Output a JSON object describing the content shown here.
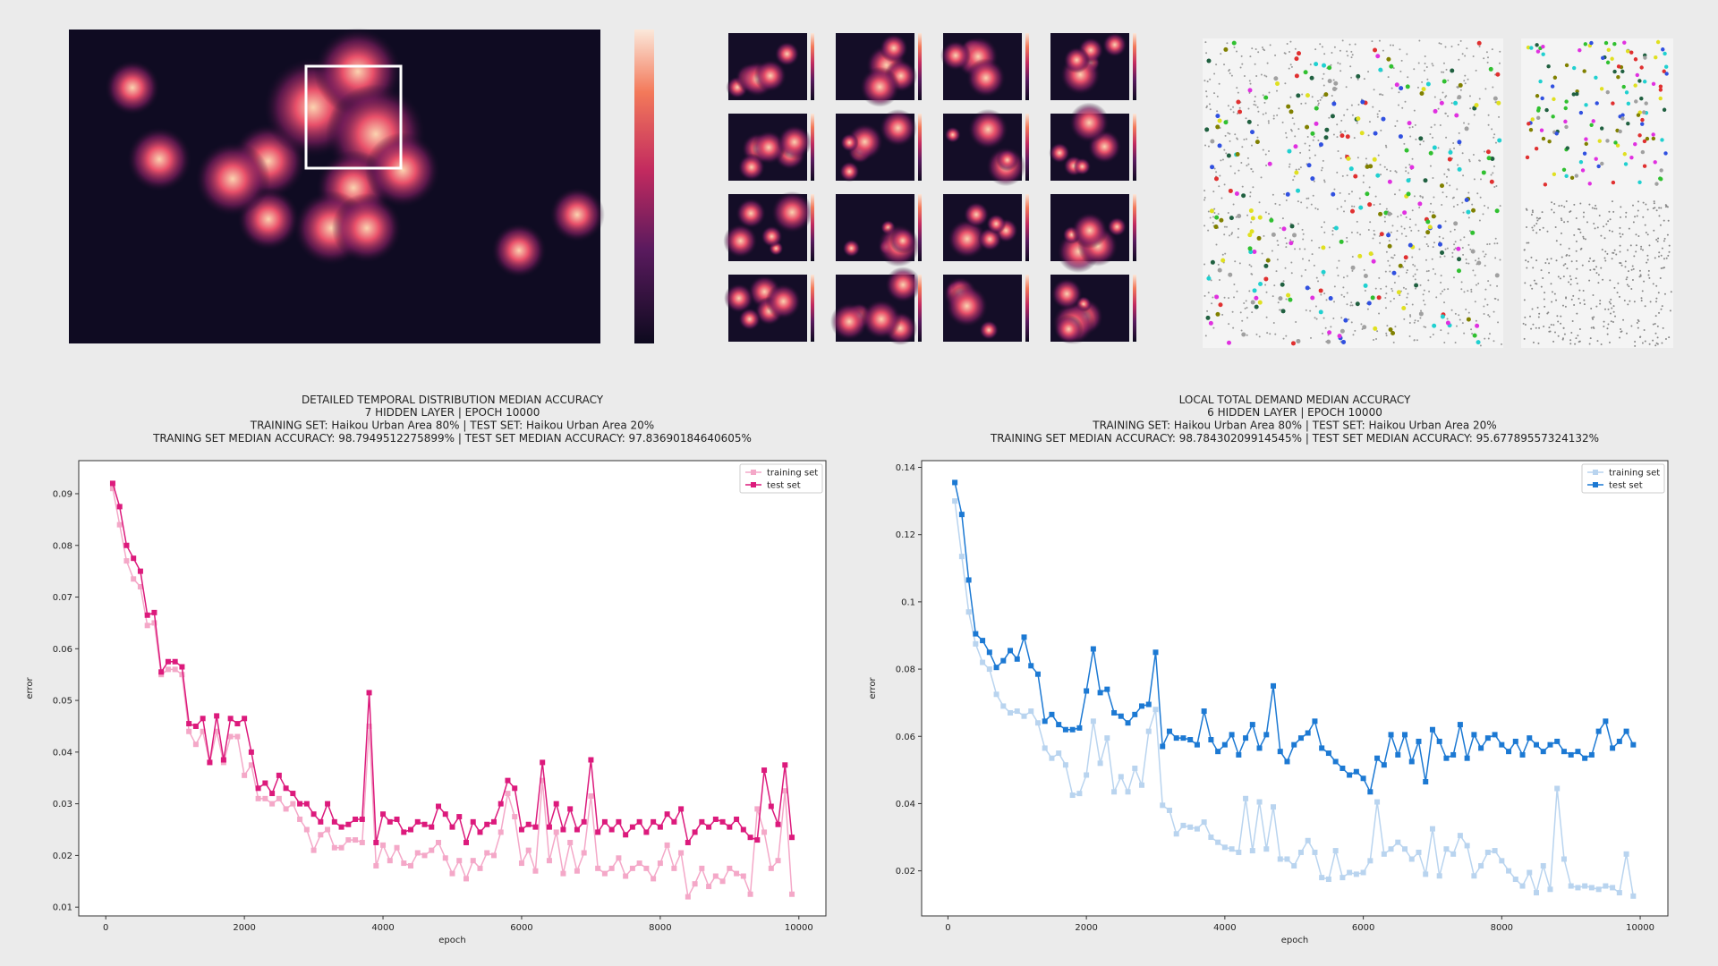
{
  "chart_data": [
    {
      "type": "line",
      "title": "DETAILED TEMPORAL DISTRIBUTION MEDIAN ACCURACY",
      "subtitle": [
        "7 HIDDEN LAYER | EPOCH 10000",
        "TRAINING SET: Haikou Urban Area 80% | TEST SET: Haikou Urban Area 20%",
        "TRANING SET MEDIAN ACCURACY: 98.7949512275899% | TEST SET MEDIAN ACCURACY: 97.83690184640605%"
      ],
      "xlabel": "epoch",
      "ylabel": "error",
      "legend": "upper right",
      "xlim": [
        -390,
        10390
      ],
      "ylim": [
        0.0083,
        0.0964
      ],
      "xticks": [
        0,
        2000,
        4000,
        6000,
        8000,
        10000
      ],
      "yticks": [
        0.01,
        0.02,
        0.03,
        0.04,
        0.05,
        0.06,
        0.07,
        0.08,
        0.09
      ],
      "x": [
        100,
        200,
        300,
        400,
        500,
        600,
        700,
        800,
        900,
        1000,
        1100,
        1200,
        1300,
        1400,
        1500,
        1600,
        1700,
        1800,
        1900,
        2000,
        2100,
        2200,
        2300,
        2400,
        2500,
        2600,
        2700,
        2800,
        2900,
        3000,
        3100,
        3200,
        3300,
        3400,
        3500,
        3600,
        3700,
        3800,
        3900,
        4000,
        4100,
        4200,
        4300,
        4400,
        4500,
        4600,
        4700,
        4800,
        4900,
        5000,
        5100,
        5200,
        5300,
        5400,
        5500,
        5600,
        5700,
        5800,
        5900,
        6000,
        6100,
        6200,
        6300,
        6400,
        6500,
        6600,
        6700,
        6800,
        6900,
        7000,
        7100,
        7200,
        7300,
        7400,
        7500,
        7600,
        7700,
        7800,
        7900,
        8000,
        8100,
        8200,
        8300,
        8400,
        8500,
        8600,
        8700,
        8800,
        8900,
        9000,
        9100,
        9200,
        9300,
        9400,
        9500,
        9600,
        9700,
        9800,
        9900
      ],
      "series": [
        {
          "name": "training set",
          "color": "#f4a8c8",
          "values": [
            0.091,
            0.084,
            0.077,
            0.0735,
            0.072,
            0.0645,
            0.065,
            0.055,
            0.056,
            0.056,
            0.055,
            0.044,
            0.0415,
            0.044,
            0.038,
            0.044,
            0.038,
            0.043,
            0.043,
            0.0355,
            0.0375,
            0.031,
            0.031,
            0.03,
            0.031,
            0.029,
            0.03,
            0.027,
            0.025,
            0.021,
            0.024,
            0.025,
            0.0215,
            0.0215,
            0.023,
            0.023,
            0.0225,
            0.045,
            0.018,
            0.022,
            0.019,
            0.0215,
            0.0185,
            0.018,
            0.0205,
            0.02,
            0.021,
            0.0225,
            0.0195,
            0.0165,
            0.019,
            0.0155,
            0.019,
            0.0175,
            0.0205,
            0.02,
            0.0245,
            0.032,
            0.0275,
            0.0185,
            0.021,
            0.017,
            0.0345,
            0.019,
            0.0245,
            0.0165,
            0.0225,
            0.017,
            0.0205,
            0.0315,
            0.0175,
            0.0165,
            0.0175,
            0.0195,
            0.016,
            0.0175,
            0.0185,
            0.0175,
            0.0155,
            0.0185,
            0.022,
            0.0175,
            0.0205,
            0.012,
            0.0145,
            0.0175,
            0.014,
            0.016,
            0.015,
            0.0175,
            0.0165,
            0.016,
            0.0125,
            0.029,
            0.0245,
            0.0175,
            0.019,
            0.0325,
            0.0125
          ]
        },
        {
          "name": "test set",
          "color": "#dc1a7c",
          "values": [
            0.092,
            0.0875,
            0.08,
            0.0775,
            0.075,
            0.0665,
            0.067,
            0.0555,
            0.0575,
            0.0575,
            0.0565,
            0.0455,
            0.045,
            0.0465,
            0.038,
            0.047,
            0.0385,
            0.0465,
            0.0455,
            0.0465,
            0.04,
            0.033,
            0.034,
            0.032,
            0.0355,
            0.033,
            0.032,
            0.03,
            0.03,
            0.028,
            0.0265,
            0.03,
            0.0265,
            0.0255,
            0.026,
            0.027,
            0.027,
            0.0515,
            0.0225,
            0.028,
            0.0265,
            0.027,
            0.0245,
            0.025,
            0.0265,
            0.026,
            0.0255,
            0.0295,
            0.028,
            0.0255,
            0.0275,
            0.0225,
            0.0265,
            0.0245,
            0.026,
            0.0265,
            0.03,
            0.0345,
            0.033,
            0.025,
            0.026,
            0.0255,
            0.038,
            0.0255,
            0.03,
            0.025,
            0.029,
            0.025,
            0.0265,
            0.0385,
            0.0245,
            0.0265,
            0.025,
            0.0265,
            0.024,
            0.0255,
            0.0265,
            0.0245,
            0.0265,
            0.0255,
            0.028,
            0.0265,
            0.029,
            0.0225,
            0.0245,
            0.0265,
            0.0255,
            0.027,
            0.0265,
            0.0255,
            0.027,
            0.025,
            0.0235,
            0.023,
            0.0365,
            0.0295,
            0.026,
            0.0375,
            0.0235
          ]
        }
      ]
    },
    {
      "type": "line",
      "title": "LOCAL TOTAL DEMAND MEDIAN ACCURACY",
      "subtitle": [
        "6 HIDDEN LAYER | EPOCH 10000",
        "TRAINING SET: Haikou Urban Area 80% | TEST SET: Haikou Urban Area 20%",
        "TRAINING SET MEDIAN ACCURACY: 98.78430209914545% | TEST SET MEDIAN ACCURACY: 95.67789557324132%"
      ],
      "xlabel": "epoch",
      "ylabel": "error",
      "legend": "upper right",
      "xlim": [
        -380,
        10400
      ],
      "ylim": [
        0.0066,
        0.142
      ],
      "xticks": [
        0,
        2000,
        4000,
        6000,
        8000,
        10000
      ],
      "yticks": [
        0.02,
        0.04,
        0.06,
        0.08,
        0.1,
        0.12,
        0.14
      ],
      "x": [
        100,
        200,
        300,
        400,
        500,
        600,
        700,
        800,
        900,
        1000,
        1100,
        1200,
        1300,
        1400,
        1500,
        1600,
        1700,
        1800,
        1900,
        2000,
        2100,
        2200,
        2300,
        2400,
        2500,
        2600,
        2700,
        2800,
        2900,
        3000,
        3100,
        3200,
        3300,
        3400,
        3500,
        3600,
        3700,
        3800,
        3900,
        4000,
        4100,
        4200,
        4300,
        4400,
        4500,
        4600,
        4700,
        4800,
        4900,
        5000,
        5100,
        5200,
        5300,
        5400,
        5500,
        5600,
        5700,
        5800,
        5900,
        6000,
        6100,
        6200,
        6300,
        6400,
        6500,
        6600,
        6700,
        6800,
        6900,
        7000,
        7100,
        7200,
        7300,
        7400,
        7500,
        7600,
        7700,
        7800,
        7900,
        8000,
        8100,
        8200,
        8300,
        8400,
        8500,
        8600,
        8700,
        8800,
        8900,
        9000,
        9100,
        9200,
        9300,
        9400,
        9500,
        9600,
        9700,
        9800,
        9900
      ],
      "series": [
        {
          "name": "training set",
          "color": "#b9d4ef",
          "values": [
            0.13,
            0.1135,
            0.097,
            0.0875,
            0.082,
            0.08,
            0.0725,
            0.069,
            0.067,
            0.0675,
            0.066,
            0.0675,
            0.064,
            0.0565,
            0.0535,
            0.055,
            0.0515,
            0.0425,
            0.043,
            0.0485,
            0.0645,
            0.052,
            0.0595,
            0.0435,
            0.048,
            0.0435,
            0.0505,
            0.0455,
            0.0615,
            0.068,
            0.0395,
            0.038,
            0.031,
            0.0335,
            0.033,
            0.0325,
            0.0345,
            0.03,
            0.0285,
            0.027,
            0.0265,
            0.0255,
            0.0415,
            0.026,
            0.0405,
            0.0265,
            0.039,
            0.0235,
            0.0235,
            0.0215,
            0.0255,
            0.029,
            0.0255,
            0.018,
            0.0175,
            0.026,
            0.018,
            0.0195,
            0.019,
            0.0195,
            0.023,
            0.0405,
            0.025,
            0.0265,
            0.0285,
            0.0265,
            0.0235,
            0.0255,
            0.019,
            0.0325,
            0.0185,
            0.0265,
            0.025,
            0.0305,
            0.0275,
            0.0185,
            0.0215,
            0.0255,
            0.026,
            0.023,
            0.02,
            0.0175,
            0.0155,
            0.0195,
            0.0135,
            0.0215,
            0.0145,
            0.0445,
            0.0235,
            0.0155,
            0.015,
            0.0155,
            0.015,
            0.0145,
            0.0155,
            0.015,
            0.0135,
            0.025,
            0.0125
          ]
        },
        {
          "name": "test set",
          "color": "#1c79d3",
          "values": [
            0.1355,
            0.126,
            0.1065,
            0.0905,
            0.0885,
            0.085,
            0.0805,
            0.0825,
            0.0855,
            0.083,
            0.0895,
            0.081,
            0.0785,
            0.0645,
            0.0665,
            0.0635,
            0.062,
            0.062,
            0.0625,
            0.0735,
            0.086,
            0.073,
            0.074,
            0.067,
            0.066,
            0.064,
            0.0665,
            0.069,
            0.0695,
            0.085,
            0.057,
            0.0615,
            0.0595,
            0.0595,
            0.059,
            0.0575,
            0.0675,
            0.059,
            0.0555,
            0.0575,
            0.0605,
            0.0545,
            0.0595,
            0.0635,
            0.0565,
            0.0605,
            0.075,
            0.0555,
            0.0525,
            0.0575,
            0.0595,
            0.061,
            0.0645,
            0.0565,
            0.055,
            0.0525,
            0.0505,
            0.0485,
            0.0495,
            0.0475,
            0.0435,
            0.0535,
            0.0515,
            0.0605,
            0.0545,
            0.0605,
            0.0525,
            0.0585,
            0.0465,
            0.062,
            0.0585,
            0.0535,
            0.0545,
            0.0635,
            0.0535,
            0.0605,
            0.0565,
            0.0595,
            0.0605,
            0.0575,
            0.0555,
            0.0585,
            0.0545,
            0.0595,
            0.0575,
            0.0555,
            0.0575,
            0.0585,
            0.0555,
            0.0545,
            0.0555,
            0.0535,
            0.0545,
            0.0615,
            0.0645,
            0.0565,
            0.0585,
            0.0615,
            0.0575
          ]
        }
      ]
    }
  ]
}
